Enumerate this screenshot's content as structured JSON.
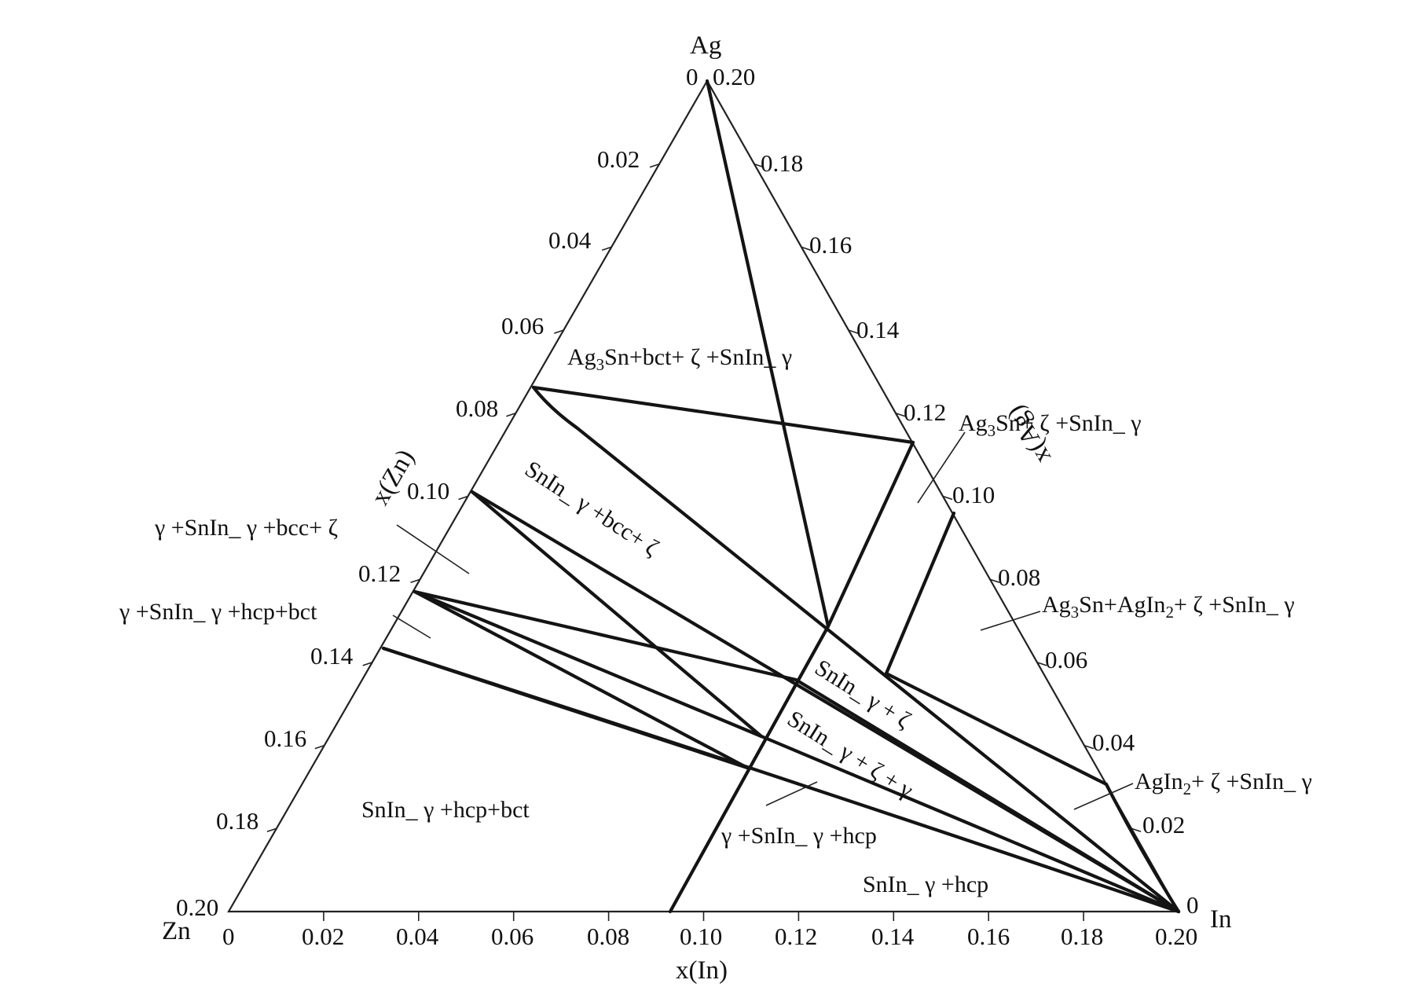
{
  "diagram": {
    "vertices": {
      "top": "Ag",
      "left": "Zn",
      "right": "In"
    },
    "axis_titles": {
      "bottom": "x(In)",
      "left": "x(Zn)",
      "right": "x(Ag)"
    },
    "bottom_ticks": [
      "0",
      "0.02",
      "0.04",
      "0.06",
      "0.08",
      "0.10",
      "0.12",
      "0.14",
      "0.16",
      "0.18",
      "0.20"
    ],
    "left_ticks": [
      "0",
      "0.02",
      "0.04",
      "0.06",
      "0.08",
      "0.10",
      "0.12",
      "0.14",
      "0.16",
      "0.18",
      "0.20"
    ],
    "right_ticks": [
      "0",
      "0.02",
      "0.04",
      "0.06",
      "0.08",
      "0.10",
      "0.12",
      "0.14",
      "0.16",
      "0.18",
      "0.20"
    ],
    "regions": [
      {
        "label": "Ag₃Sn+bct+ ζ +SnIn_ γ"
      },
      {
        "label": "Ag₃Sn+ ζ +SnIn_ γ"
      },
      {
        "label": "SnIn_ γ +bcc+ ζ"
      },
      {
        "label": "γ +SnIn_ γ +bcc+ ζ"
      },
      {
        "label": "γ +SnIn_ γ +hcp+bct"
      },
      {
        "label": "Ag₃Sn+AgIn₂+ ζ +SnIn_ γ"
      },
      {
        "label": "SnIn_ γ + ζ"
      },
      {
        "label": "SnIn_ γ + ζ + γ"
      },
      {
        "label": "AgIn₂+ ζ +SnIn_ γ"
      },
      {
        "label": "SnIn_ γ +hcp+bct"
      },
      {
        "label": "γ +SnIn_ γ +hcp"
      },
      {
        "label": "SnIn_ γ +hcp"
      }
    ]
  }
}
